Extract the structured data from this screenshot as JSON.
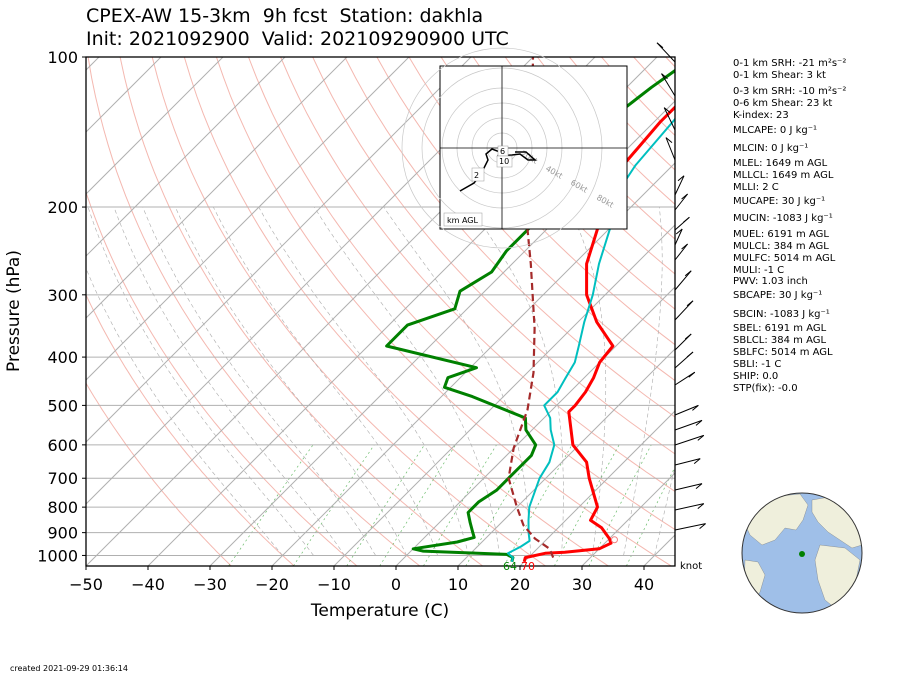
{
  "title_line1": "CPEX-AW 15-3km  9h fcst  Station: dakhla",
  "title_line2": "Init: 2021092900  Valid: 202109290900 UTC",
  "created": "created 2021-09-29 01:36:14",
  "knot_label": "knot",
  "surface_labels": {
    "dewpoint": "64",
    "temperature": "70"
  },
  "hodograph": {
    "unit_label": "km AGL",
    "ring_labels": [
      "20kt",
      "40kt",
      "60kt",
      "80kt"
    ],
    "height_labels": [
      "6",
      "10",
      "2"
    ]
  },
  "indices": [
    "0-1 km SRH: -21 m²s⁻²",
    "0-1 km Shear: 3 kt",
    "0-3 km SRH: -10 m²s⁻²",
    "0-6 km Shear: 23 kt",
    "K-index: 23",
    "MLCAPE: 0 J kg⁻¹",
    "MLCIN: 0 J kg⁻¹",
    "MLEL: 1649 m AGL",
    "MLLCL: 1649 m AGL",
    "MLLI: 2 C",
    "MUCAPE: 30 J kg⁻¹",
    "MUCIN: -1083 J kg⁻¹",
    "MUEL: 6191 m AGL",
    "MULCL: 384 m AGL",
    "MULFC: 5014 m AGL",
    "MULI: -1 C",
    "PWV: 1.03 inch",
    "SBCAPE: 30 J kg⁻¹",
    "SBCIN: -1083 J kg⁻¹",
    "SBEL: 6191 m AGL",
    "SBLCL: 384 m AGL",
    "SBLFC: 5014 m AGL",
    "SBLI: -1 C",
    "SHIP: 0.0",
    "STP(fix): -0.0"
  ],
  "colors": {
    "temperature": "#ff0000",
    "dewpoint": "#008000",
    "wetbulb": "#00bfbf",
    "parcel": "#a52a2a",
    "isobar": "#b0b0b0",
    "dry_adiabat": "#f4b8b0",
    "mixing_ratio": "#2ca02c",
    "ocean": "#9fbfe8",
    "land": "#efefdc"
  },
  "chart_data": {
    "type": "line",
    "xlabel": "Temperature (C)",
    "ylabel": "Pressure (hPa)",
    "xlim": [
      -50,
      45
    ],
    "ylim": [
      1050,
      100
    ],
    "y_scale": "log",
    "x_ticks": [
      -50,
      -40,
      -30,
      -20,
      -10,
      0,
      10,
      20,
      30,
      40
    ],
    "y_ticks": [
      1000,
      900,
      800,
      700,
      600,
      500,
      400,
      300,
      200,
      100
    ],
    "grid": true,
    "series": [
      {
        "key": "temperature",
        "points": [
          [
            20,
            1030
          ],
          [
            19.5,
            1010
          ],
          [
            22,
            990
          ],
          [
            25,
            985
          ],
          [
            30,
            970
          ],
          [
            31,
            945
          ],
          [
            30,
            925
          ],
          [
            27,
            880
          ],
          [
            24,
            850
          ],
          [
            23,
            800
          ],
          [
            17,
            700
          ],
          [
            14,
            650
          ],
          [
            9,
            600
          ],
          [
            3,
            515
          ],
          [
            3,
            500
          ],
          [
            2.5,
            470
          ],
          [
            1.5,
            440
          ],
          [
            0,
            410
          ],
          [
            -0.5,
            380
          ],
          [
            -7,
            340
          ],
          [
            -13,
            300
          ],
          [
            -18,
            260
          ],
          [
            -22,
            220
          ],
          [
            -26,
            195
          ],
          [
            -28,
            165
          ],
          [
            -29,
            135
          ],
          [
            -29,
            115
          ],
          [
            -29,
            108
          ],
          [
            -26,
            100
          ]
        ]
      },
      {
        "key": "dewpoint",
        "points": [
          [
            18,
            1030
          ],
          [
            17.5,
            1010
          ],
          [
            16,
            995
          ],
          [
            2,
            980
          ],
          [
            0,
            970
          ],
          [
            6,
            940
          ],
          [
            8,
            920
          ],
          [
            7,
            900
          ],
          [
            5,
            860
          ],
          [
            3,
            820
          ],
          [
            3,
            780
          ],
          [
            4,
            740
          ],
          [
            4,
            690
          ],
          [
            4,
            660
          ],
          [
            4,
            630
          ],
          [
            3,
            600
          ],
          [
            -1,
            560
          ],
          [
            -3,
            530
          ],
          [
            -15,
            480
          ],
          [
            -21,
            460
          ],
          [
            -22,
            440
          ],
          [
            -19,
            420
          ],
          [
            -37,
            380
          ],
          [
            -37,
            345
          ],
          [
            -32,
            320
          ],
          [
            -34,
            295
          ],
          [
            -32,
            270
          ],
          [
            -33,
            245
          ],
          [
            -33,
            200
          ],
          [
            -35,
            170
          ],
          [
            -38,
            140
          ],
          [
            -36,
            115
          ],
          [
            -34,
            100
          ]
        ]
      },
      {
        "key": "wetbulb",
        "points": [
          [
            18,
            1030
          ],
          [
            17.5,
            1010
          ],
          [
            16,
            990
          ],
          [
            17,
            960
          ],
          [
            17.5,
            935
          ],
          [
            16,
            900
          ],
          [
            14,
            850
          ],
          [
            12,
            800
          ],
          [
            9,
            700
          ],
          [
            8,
            650
          ],
          [
            6,
            600
          ],
          [
            3,
            560
          ],
          [
            1,
            530
          ],
          [
            -2,
            500
          ],
          [
            -2,
            470
          ],
          [
            -3,
            440
          ],
          [
            -4,
            410
          ],
          [
            -6,
            380
          ],
          [
            -9,
            340
          ],
          [
            -12,
            300
          ],
          [
            -16,
            260
          ],
          [
            -20,
            220
          ],
          [
            -24,
            195
          ],
          [
            -26,
            165
          ],
          [
            -27,
            135
          ],
          [
            -28,
            115
          ],
          [
            -28,
            108
          ],
          [
            -26,
            100
          ]
        ]
      },
      {
        "key": "parcel",
        "points": [
          [
            24,
            1010
          ],
          [
            22,
            970
          ],
          [
            18,
            925
          ],
          [
            14,
            870
          ],
          [
            10,
            800
          ],
          [
            4,
            700
          ],
          [
            0,
            610
          ],
          [
            -4,
            510
          ],
          [
            -9,
            430
          ],
          [
            -16,
            350
          ],
          [
            -27,
            260
          ],
          [
            -39,
            190
          ],
          [
            -51,
            130
          ],
          [
            -60,
            100
          ]
        ]
      }
    ]
  }
}
